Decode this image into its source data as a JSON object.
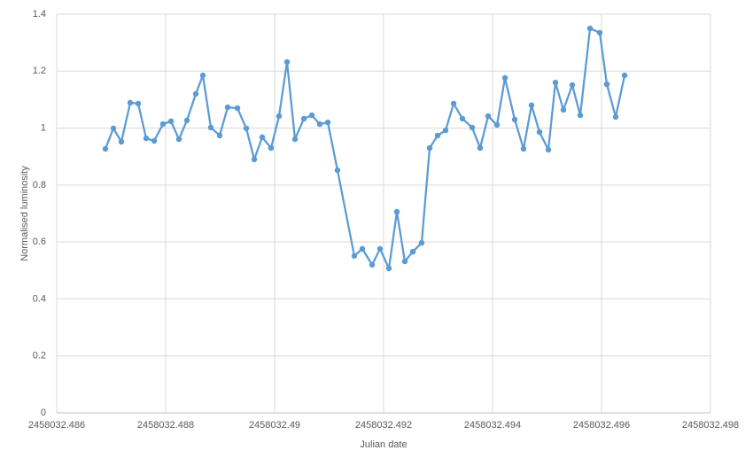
{
  "chart_data": {
    "type": "line",
    "x_label": "Julian date",
    "y_label": "Normalised luminosity",
    "x": [
      2458032.486894,
      2458032.487041,
      2458032.487187,
      2458032.48735,
      2458032.487496,
      2458032.487642,
      2458032.487789,
      2458032.487951,
      2458032.488098,
      2458032.488244,
      2458032.48839,
      2458032.488553,
      2458032.488683,
      2458032.488829,
      2458032.488992,
      2458032.489138,
      2458032.489317,
      2458032.48948,
      2458032.489626,
      2458032.489772,
      2458032.489935,
      2458032.490081,
      2458032.490228,
      2458032.490374,
      2458032.490537,
      2458032.490683,
      2458032.490829,
      2458032.490976,
      2458032.491154,
      2458032.491463,
      2458032.49161,
      2458032.491789,
      2458032.491935,
      2458032.492098,
      2458032.492244,
      2458032.49239,
      2458032.492537,
      2458032.492699,
      2458032.492846,
      2458032.492992,
      2458032.493138,
      2458032.493285,
      2458032.493447,
      2458032.493626,
      2458032.493772,
      2458032.493919,
      2458032.494081,
      2458032.494228,
      2458032.494407,
      2458032.494569,
      2458032.494715,
      2458032.494862,
      2458032.495024,
      2458032.495154,
      2458032.495301,
      2458032.495463,
      2458032.49561,
      2458032.495789,
      2458032.495967,
      2458032.496098,
      2458032.49626,
      2458032.496423
    ],
    "values": [
      0.927,
      0.999,
      0.952,
      1.089,
      1.086,
      0.964,
      0.955,
      1.014,
      1.024,
      0.961,
      1.027,
      1.12,
      1.185,
      1.002,
      0.974,
      1.073,
      1.07,
      0.999,
      0.89,
      0.968,
      0.93,
      1.042,
      1.232,
      0.961,
      1.033,
      1.045,
      1.014,
      1.02,
      0.852,
      0.551,
      0.576,
      0.52,
      0.576,
      0.507,
      0.706,
      0.532,
      0.566,
      0.597,
      0.93,
      0.974,
      0.992,
      1.086,
      1.033,
      1.002,
      0.93,
      1.042,
      1.011,
      1.176,
      1.03,
      0.927,
      1.08,
      0.986,
      0.924,
      1.16,
      1.064,
      1.151,
      1.045,
      1.35,
      1.335,
      1.154,
      1.039,
      1.185
    ],
    "color": "#5b9bd5",
    "markers": true,
    "xlim": [
      2458032.486,
      2458032.498
    ],
    "xticks": [
      2458032.486,
      2458032.488,
      2458032.49,
      2458032.492,
      2458032.494,
      2458032.496,
      2458032.498
    ],
    "ylim": [
      0,
      1.4
    ],
    "yticks": [
      0,
      0.2,
      0.4,
      0.6,
      0.8,
      1,
      1.2,
      1.4
    ],
    "grid": true
  }
}
